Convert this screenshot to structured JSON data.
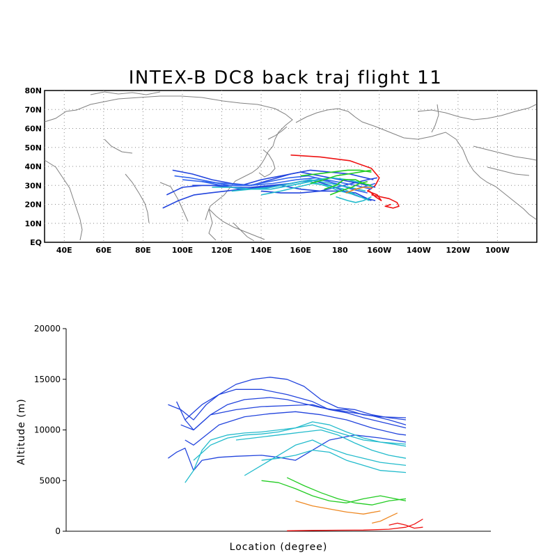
{
  "map": {
    "title": "INTEX-B DC8 back traj flight 11",
    "lat_labels": [
      "80N",
      "70N",
      "60N",
      "50N",
      "40N",
      "30N",
      "20N",
      "10N",
      "EQ"
    ],
    "lon_labels": [
      "40E",
      "60E",
      "80E",
      "100E",
      "120E",
      "140E",
      "160E",
      "180",
      "160W",
      "140W",
      "120W",
      "100W"
    ]
  },
  "profile": {
    "xlabel": "Location (degree)",
    "ylabel": "Altitude (m)",
    "yticks": [
      "20000",
      "15000",
      "10000",
      "5000",
      "0"
    ]
  },
  "chart_data": [
    {
      "type": "line",
      "title": "INTEX-B DC8 back traj flight 11",
      "xlim": [
        30,
        280
      ],
      "ylim": [
        0,
        80
      ],
      "colors": {
        "high": "#2244dd",
        "high2": "#3366ee",
        "mid": "#22bbcc",
        "low": "#22cc22",
        "lower": "#ee8822",
        "surface": "#ee1111"
      },
      "series": [
        {
          "color": "#ee1111",
          "x": [
            155,
            170,
            185,
            196,
            200,
            198,
            194,
            199,
            201,
            198,
            195
          ],
          "y": [
            46,
            45,
            43,
            39,
            34,
            30,
            27,
            25,
            22,
            24,
            27
          ]
        },
        {
          "color": "#ee1111",
          "x": [
            196,
            205,
            209,
            210,
            207,
            203,
            206
          ],
          "y": [
            25,
            23,
            21,
            19,
            18,
            19,
            20
          ]
        },
        {
          "color": "#2244dd",
          "x": [
            95,
            105,
            115,
            125,
            135,
            145,
            155,
            165,
            175,
            185,
            197
          ],
          "y": [
            38,
            36,
            33,
            31,
            30,
            33,
            36,
            38,
            37,
            36,
            33
          ]
        },
        {
          "color": "#2244dd",
          "x": [
            92,
            100,
            110,
            120,
            130,
            140,
            150,
            160,
            170,
            180,
            190,
            198
          ],
          "y": [
            25,
            29,
            30,
            30,
            30,
            33,
            35,
            37,
            35,
            33,
            31,
            29
          ]
        },
        {
          "color": "#2244dd",
          "x": [
            90,
            98,
            106,
            114,
            122,
            130,
            140,
            150,
            160,
            170,
            180,
            188,
            196
          ],
          "y": [
            18,
            22,
            25,
            26,
            27,
            28,
            29,
            30,
            28,
            27,
            27,
            26,
            22
          ]
        },
        {
          "color": "#3366ee",
          "x": [
            96,
            104,
            114,
            124,
            134,
            144,
            154,
            164,
            172,
            180,
            188,
            198
          ],
          "y": [
            35,
            34,
            32,
            30,
            30,
            32,
            34,
            35,
            33,
            30,
            28,
            31
          ]
        },
        {
          "color": "#3366ee",
          "x": [
            100,
            110,
            120,
            130,
            140,
            150,
            160,
            170,
            178,
            186,
            194
          ],
          "y": [
            33,
            32,
            30,
            28,
            28,
            30,
            32,
            33,
            31,
            28,
            26
          ]
        },
        {
          "color": "#2244dd",
          "x": [
            105,
            115,
            125,
            135,
            145,
            155,
            165,
            175,
            182,
            190,
            198
          ],
          "y": [
            30,
            30,
            29,
            29,
            30,
            31,
            33,
            30,
            27,
            24,
            22
          ]
        },
        {
          "color": "#2244dd",
          "x": [
            140,
            150,
            160,
            170,
            178,
            186,
            194,
            199
          ],
          "y": [
            27,
            26,
            26,
            27,
            29,
            31,
            33,
            34
          ]
        },
        {
          "color": "#3366ee",
          "x": [
            110,
            122,
            134,
            146,
            158,
            168,
            178,
            188,
            196
          ],
          "y": [
            32,
            31,
            30,
            31,
            33,
            34,
            32,
            30,
            28
          ]
        },
        {
          "color": "#22bbcc",
          "x": [
            115,
            125,
            135,
            145,
            155,
            165,
            175,
            185,
            193
          ],
          "y": [
            29,
            29,
            28,
            29,
            31,
            33,
            31,
            29,
            27
          ]
        },
        {
          "color": "#22bbcc",
          "x": [
            125,
            135,
            145,
            155,
            165,
            172,
            180,
            188,
            195
          ],
          "y": [
            27,
            28,
            28,
            30,
            32,
            30,
            27,
            25,
            22
          ]
        },
        {
          "color": "#22bbcc",
          "x": [
            140,
            150,
            158,
            166,
            174,
            182,
            190
          ],
          "y": [
            25,
            27,
            29,
            31,
            30,
            28,
            24
          ]
        },
        {
          "color": "#22bbcc",
          "x": [
            150,
            160,
            168,
            176,
            184,
            192,
            197
          ],
          "y": [
            29,
            31,
            33,
            34,
            33,
            31,
            29
          ]
        },
        {
          "color": "#22cc22",
          "x": [
            160,
            168,
            176,
            184,
            190,
            196
          ],
          "y": [
            35,
            36,
            37,
            38,
            38,
            37
          ]
        },
        {
          "color": "#22cc22",
          "x": [
            165,
            172,
            178,
            184,
            190,
            196
          ],
          "y": [
            31,
            33,
            35,
            36,
            37,
            38
          ]
        },
        {
          "color": "#22cc22",
          "x": [
            172,
            178,
            182,
            188,
            192,
            196
          ],
          "y": [
            28,
            30,
            33,
            33,
            31,
            30
          ]
        },
        {
          "color": "#22cc22",
          "x": [
            175,
            180,
            186,
            190,
            194
          ],
          "y": [
            25,
            27,
            29,
            31,
            32
          ]
        },
        {
          "color": "#22bbcc",
          "x": [
            178,
            184,
            188,
            192,
            196
          ],
          "y": [
            24,
            22,
            21,
            22,
            24
          ]
        },
        {
          "color": "#ee8822",
          "x": [
            183,
            188,
            192,
            196
          ],
          "y": [
            26,
            28,
            29,
            29
          ]
        }
      ]
    },
    {
      "type": "line",
      "title": "",
      "xlabel": "Location (degree)",
      "ylabel": "Altitude (m)",
      "xlim": [
        0,
        100
      ],
      "ylim": [
        0,
        20000
      ],
      "series": [
        {
          "color": "#2244dd",
          "x": [
            24,
            27,
            30,
            33,
            36,
            40,
            46,
            52,
            58,
            62,
            66,
            70,
            74,
            80
          ],
          "y": [
            12500,
            12000,
            11000,
            12500,
            13500,
            14000,
            14000,
            13500,
            12800,
            12000,
            12000,
            11500,
            11300,
            11200
          ]
        },
        {
          "color": "#2244dd",
          "x": [
            26,
            28,
            30,
            34,
            38,
            42,
            48,
            52,
            56,
            60,
            66,
            72,
            76,
            80
          ],
          "y": [
            12800,
            11000,
            10000,
            11500,
            12500,
            13000,
            13200,
            13000,
            12600,
            12200,
            11800,
            11400,
            11000,
            10500
          ]
        },
        {
          "color": "#2244dd",
          "x": [
            28,
            32,
            36,
            40,
            44,
            48,
            52,
            56,
            60,
            64,
            68,
            72,
            76,
            80
          ],
          "y": [
            11000,
            12500,
            13500,
            14500,
            15000,
            15200,
            15000,
            14300,
            13000,
            12200,
            12000,
            11500,
            11200,
            11000
          ]
        },
        {
          "color": "#2244dd",
          "x": [
            27,
            30,
            34,
            40,
            46,
            52,
            58,
            62,
            66,
            70,
            76,
            80
          ],
          "y": [
            10500,
            10000,
            11500,
            12000,
            12300,
            12400,
            12500,
            12000,
            11700,
            11200,
            10600,
            10200
          ]
        },
        {
          "color": "#2244dd",
          "x": [
            24,
            26,
            28,
            30,
            32,
            36,
            40,
            46,
            50,
            54,
            58,
            62,
            68,
            74,
            80
          ],
          "y": [
            7200,
            7800,
            8200,
            6000,
            7000,
            7300,
            7400,
            7500,
            7300,
            7000,
            8000,
            9000,
            9500,
            9200,
            8800
          ]
        },
        {
          "color": "#2244dd",
          "x": [
            28,
            30,
            33,
            36,
            42,
            48,
            54,
            60,
            66,
            72,
            78,
            80
          ],
          "y": [
            9000,
            8500,
            9500,
            10500,
            11300,
            11600,
            11800,
            11500,
            11000,
            10200,
            9600,
            9500
          ]
        },
        {
          "color": "#22bbcc",
          "x": [
            28,
            30,
            32,
            34,
            38,
            42,
            46,
            50,
            54,
            58,
            62,
            66,
            70,
            74,
            80
          ],
          "y": [
            4800,
            6000,
            8000,
            9000,
            9500,
            9700,
            9800,
            10000,
            10200,
            10500,
            10000,
            9500,
            9000,
            8800,
            8600
          ]
        },
        {
          "color": "#22bbcc",
          "x": [
            30,
            34,
            38,
            42,
            46,
            50,
            54,
            58,
            62,
            66,
            70,
            74,
            80
          ],
          "y": [
            7000,
            8500,
            9200,
            9500,
            9600,
            9800,
            10200,
            10800,
            10500,
            9800,
            9200,
            8800,
            8400
          ]
        },
        {
          "color": "#22bbcc",
          "x": [
            40,
            44,
            48,
            52,
            56,
            60,
            64,
            68,
            72,
            76,
            80
          ],
          "y": [
            9000,
            9200,
            9400,
            9600,
            9800,
            10000,
            9500,
            8700,
            8000,
            7500,
            7200
          ]
        },
        {
          "color": "#22bbcc",
          "x": [
            42,
            46,
            50,
            54,
            58,
            62,
            66,
            70,
            74,
            80
          ],
          "y": [
            5500,
            6500,
            7500,
            8500,
            9000,
            8200,
            7600,
            7200,
            6800,
            6500
          ]
        },
        {
          "color": "#22bbcc",
          "x": [
            46,
            50,
            54,
            58,
            62,
            66,
            70,
            74,
            80
          ],
          "y": [
            7000,
            7200,
            7500,
            8000,
            7800,
            7000,
            6500,
            6000,
            5800
          ]
        },
        {
          "color": "#22cc22",
          "x": [
            46,
            50,
            54,
            58,
            62,
            66,
            70,
            74,
            80
          ],
          "y": [
            5000,
            4800,
            4200,
            3500,
            3000,
            2800,
            3200,
            3500,
            3000
          ]
        },
        {
          "color": "#22cc22",
          "x": [
            52,
            56,
            60,
            64,
            68,
            72,
            76,
            80
          ],
          "y": [
            5300,
            4500,
            3800,
            3200,
            2800,
            2600,
            3000,
            3200
          ]
        },
        {
          "color": "#ee8822",
          "x": [
            54,
            58,
            62,
            66,
            70,
            74
          ],
          "y": [
            3000,
            2500,
            2200,
            1900,
            1700,
            2000
          ]
        },
        {
          "color": "#ee8822",
          "x": [
            72,
            74,
            76,
            78
          ],
          "y": [
            800,
            1000,
            1400,
            1800
          ]
        },
        {
          "color": "#ee1111",
          "x": [
            52,
            58,
            64,
            70,
            76,
            80,
            82,
            84
          ],
          "y": [
            50,
            80,
            100,
            120,
            200,
            400,
            700,
            1200
          ]
        },
        {
          "color": "#ee1111",
          "x": [
            76,
            78,
            80,
            82,
            84
          ],
          "y": [
            600,
            800,
            600,
            300,
            400
          ]
        }
      ]
    }
  ]
}
